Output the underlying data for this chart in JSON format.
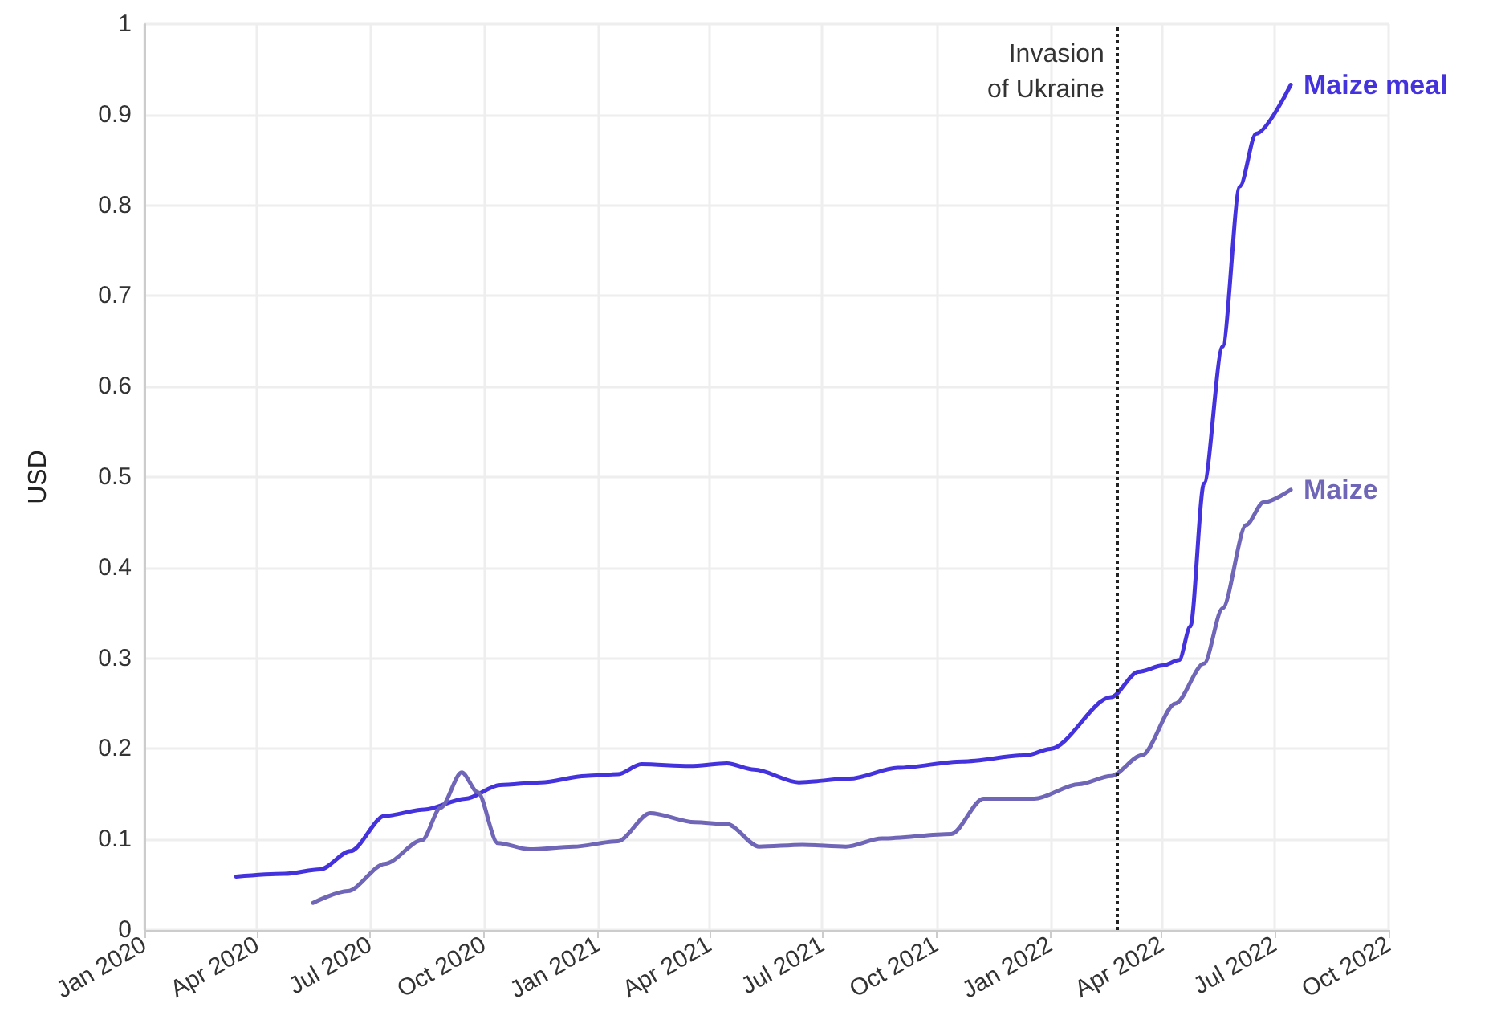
{
  "chart_data": {
    "type": "line",
    "ylabel": "USD",
    "xlim": [
      "2020-01-01",
      "2022-10-01"
    ],
    "xticks": [
      {
        "value": "2020-01-01",
        "label": "Jan 2020"
      },
      {
        "value": "2020-04-01",
        "label": "Apr 2020"
      },
      {
        "value": "2020-07-01",
        "label": "Jul 2020"
      },
      {
        "value": "2020-10-01",
        "label": "Oct 2020"
      },
      {
        "value": "2021-01-01",
        "label": "Jan 2021"
      },
      {
        "value": "2021-04-01",
        "label": "Apr 2021"
      },
      {
        "value": "2021-07-01",
        "label": "Jul 2021"
      },
      {
        "value": "2021-10-01",
        "label": "Oct 2021"
      },
      {
        "value": "2022-01-01",
        "label": "Jan 2022"
      },
      {
        "value": "2022-04-01",
        "label": "Apr 2022"
      },
      {
        "value": "2022-07-01",
        "label": "Jul 2022"
      },
      {
        "value": "2022-10-01",
        "label": "Oct 2022"
      }
    ],
    "ylim": [
      0,
      1
    ],
    "yticks": [
      0,
      0.1,
      0.2,
      0.3,
      0.4,
      0.5,
      0.6,
      0.7,
      0.8,
      0.9,
      1
    ],
    "grid": true,
    "legend": false,
    "marker": "none",
    "line_style": "solid",
    "series": [
      {
        "name": "Maize meal",
        "color": "#4433dd",
        "x": [
          "2020-03-15",
          "2020-04-23",
          "2020-05-22",
          "2020-06-15",
          "2020-07-13",
          "2020-08-14",
          "2020-09-16",
          "2020-10-14",
          "2020-11-16",
          "2020-12-22",
          "2021-01-17",
          "2021-02-05",
          "2021-03-16",
          "2021-04-15",
          "2021-05-07",
          "2021-06-12",
          "2021-07-23",
          "2021-08-31",
          "2021-10-22",
          "2021-12-13",
          "2022-01-01",
          "2022-02-19",
          "2022-03-13",
          "2022-04-02",
          "2022-04-15",
          "2022-04-24",
          "2022-05-05",
          "2022-05-20",
          "2022-06-03",
          "2022-06-16",
          "2022-07-14"
        ],
        "values": [
          0.059,
          0.062,
          0.067,
          0.087,
          0.126,
          0.133,
          0.145,
          0.16,
          0.163,
          0.17,
          0.172,
          0.183,
          0.181,
          0.184,
          0.177,
          0.163,
          0.167,
          0.179,
          0.186,
          0.193,
          0.2,
          0.257,
          0.285,
          0.292,
          0.298,
          0.335,
          0.493,
          0.644,
          0.821,
          0.879,
          0.933
        ]
      },
      {
        "name": "Maize",
        "color": "#7066b8",
        "x": [
          "2020-05-16",
          "2020-06-13",
          "2020-07-13",
          "2020-08-12",
          "2020-08-27",
          "2020-09-13",
          "2020-09-26",
          "2020-10-12",
          "2020-11-07",
          "2020-12-12",
          "2021-01-17",
          "2021-02-12",
          "2021-03-20",
          "2021-04-15",
          "2021-05-11",
          "2021-06-15",
          "2021-07-20",
          "2021-08-18",
          "2021-10-13",
          "2021-11-08",
          "2021-12-19",
          "2022-01-24",
          "2022-02-19",
          "2022-03-16",
          "2022-04-12",
          "2022-05-05",
          "2022-05-20",
          "2022-06-08",
          "2022-06-22",
          "2022-07-14"
        ],
        "values": [
          0.03,
          0.043,
          0.073,
          0.099,
          0.135,
          0.174,
          0.152,
          0.096,
          0.089,
          0.092,
          0.098,
          0.129,
          0.119,
          0.117,
          0.092,
          0.094,
          0.092,
          0.101,
          0.106,
          0.145,
          0.145,
          0.161,
          0.17,
          0.193,
          0.25,
          0.294,
          0.355,
          0.447,
          0.472,
          0.486
        ]
      }
    ],
    "ref_lines": [
      {
        "axis": "x",
        "value": "2022-02-24",
        "label": "Invasion\nof Ukraine",
        "color": "#222222",
        "line_style": "dotted"
      }
    ]
  }
}
